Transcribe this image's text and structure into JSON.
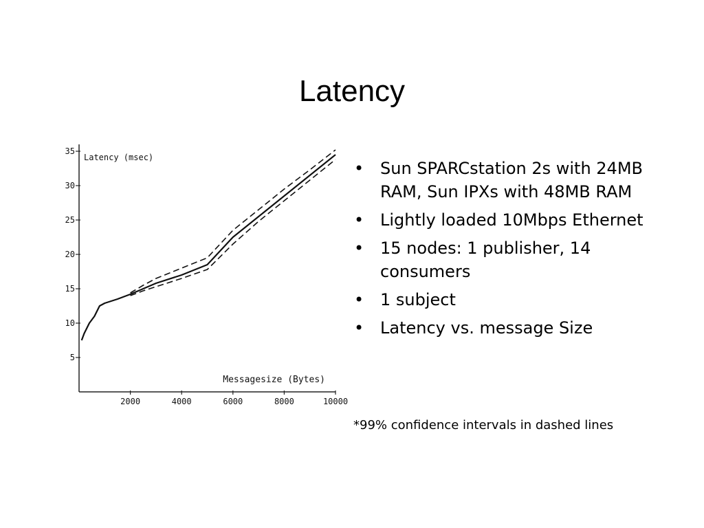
{
  "slide": {
    "title": "Latency",
    "bullets": [
      "Sun SPARCstation 2s with 24MB RAM, Sun IPXs with 48MB RAM",
      "Lightly loaded 10Mbps Ethernet",
      "15 nodes: 1 publisher, 14 consumers",
      "1 subject",
      "Latency vs. message Size"
    ],
    "footnote": "*99% confidence intervals in dashed lines"
  },
  "chart_data": {
    "type": "line",
    "ylabel": "Latency (msec)",
    "xlabel": "Messagesize (Bytes)",
    "xlim": [
      0,
      10000
    ],
    "ylim": [
      0,
      36
    ],
    "xticks": [
      2000,
      4000,
      6000,
      8000,
      10000
    ],
    "yticks": [
      5,
      10,
      15,
      20,
      25,
      30,
      35
    ],
    "grid": false,
    "series": [
      {
        "style": "solid",
        "x": [
          100,
          200,
          400,
          600,
          800,
          1000,
          1500,
          2000,
          2500,
          3000,
          4000,
          5000,
          6000,
          7000,
          8000,
          9000,
          10000
        ],
        "y": [
          7.5,
          8.5,
          10,
          11,
          12.5,
          12.9,
          13.5,
          14.2,
          15,
          15.8,
          17,
          18.5,
          22.5,
          25.5,
          28.5,
          31.5,
          34.5
        ]
      },
      {
        "style": "dashed",
        "x": [
          2000,
          2500,
          3000,
          4000,
          5000,
          6000,
          7000,
          8000,
          9000,
          10000
        ],
        "y": [
          14.4,
          15.5,
          16.5,
          18,
          19.5,
          23.5,
          26.5,
          29.5,
          32.3,
          35.2
        ]
      },
      {
        "style": "dashed",
        "x": [
          2000,
          2500,
          3000,
          4000,
          5000,
          6000,
          7000,
          8000,
          9000,
          10000
        ],
        "y": [
          14.0,
          14.7,
          15.3,
          16.5,
          17.8,
          21.5,
          24.8,
          27.8,
          30.8,
          33.8
        ]
      }
    ]
  }
}
